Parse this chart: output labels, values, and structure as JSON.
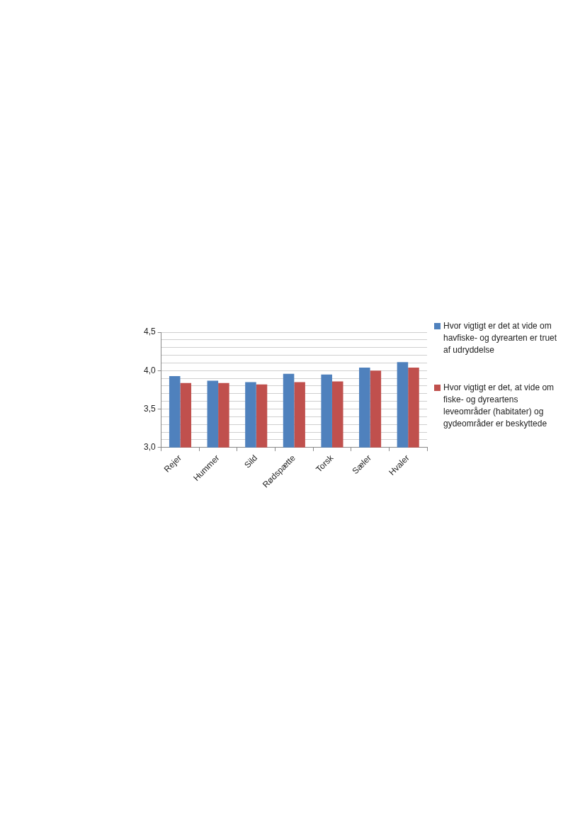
{
  "chart_data": {
    "type": "bar",
    "categories": [
      "Rejer",
      "Hummer",
      "Sild",
      "Rødspætte",
      "Torsk",
      "Sæler",
      "Hvaler"
    ],
    "series": [
      {
        "name": "Hvor vigtigt er det at vide om havfiske- og dyrearten er truet af udryddelse",
        "color": "#4f81bd",
        "values": [
          3.93,
          3.87,
          3.85,
          3.96,
          3.95,
          4.04,
          4.11
        ]
      },
      {
        "name": "Hvor vigtigt er det, at vide om fiske- og dyreartens leveområder (habitater) og gydeområder er beskyttede",
        "color": "#c0504d",
        "values": [
          3.84,
          3.84,
          3.82,
          3.85,
          3.86,
          4.0,
          4.04
        ]
      }
    ],
    "ylim": [
      3.0,
      4.5
    ],
    "yticks": [
      "3,0",
      {
        "value": 3.1,
        "label": null
      },
      {
        "value": 3.2,
        "label": null
      },
      {
        "value": 3.3,
        "label": null
      },
      {
        "value": 3.4,
        "label": null
      },
      {
        "value": 3.5,
        "label": "3,5"
      },
      {
        "value": 3.6,
        "label": null
      },
      {
        "value": 3.7,
        "label": null
      },
      {
        "value": 3.8,
        "label": null
      },
      {
        "value": 3.9,
        "label": null
      },
      {
        "value": 4.0,
        "label": "4,0"
      },
      {
        "value": 4.1,
        "label": null
      },
      {
        "value": 4.2,
        "label": null
      },
      {
        "value": 4.3,
        "label": null
      },
      {
        "value": 4.4,
        "label": null
      },
      {
        "value": 4.5,
        "label": "4,5"
      }
    ],
    "grid": "y",
    "legend": "right"
  }
}
